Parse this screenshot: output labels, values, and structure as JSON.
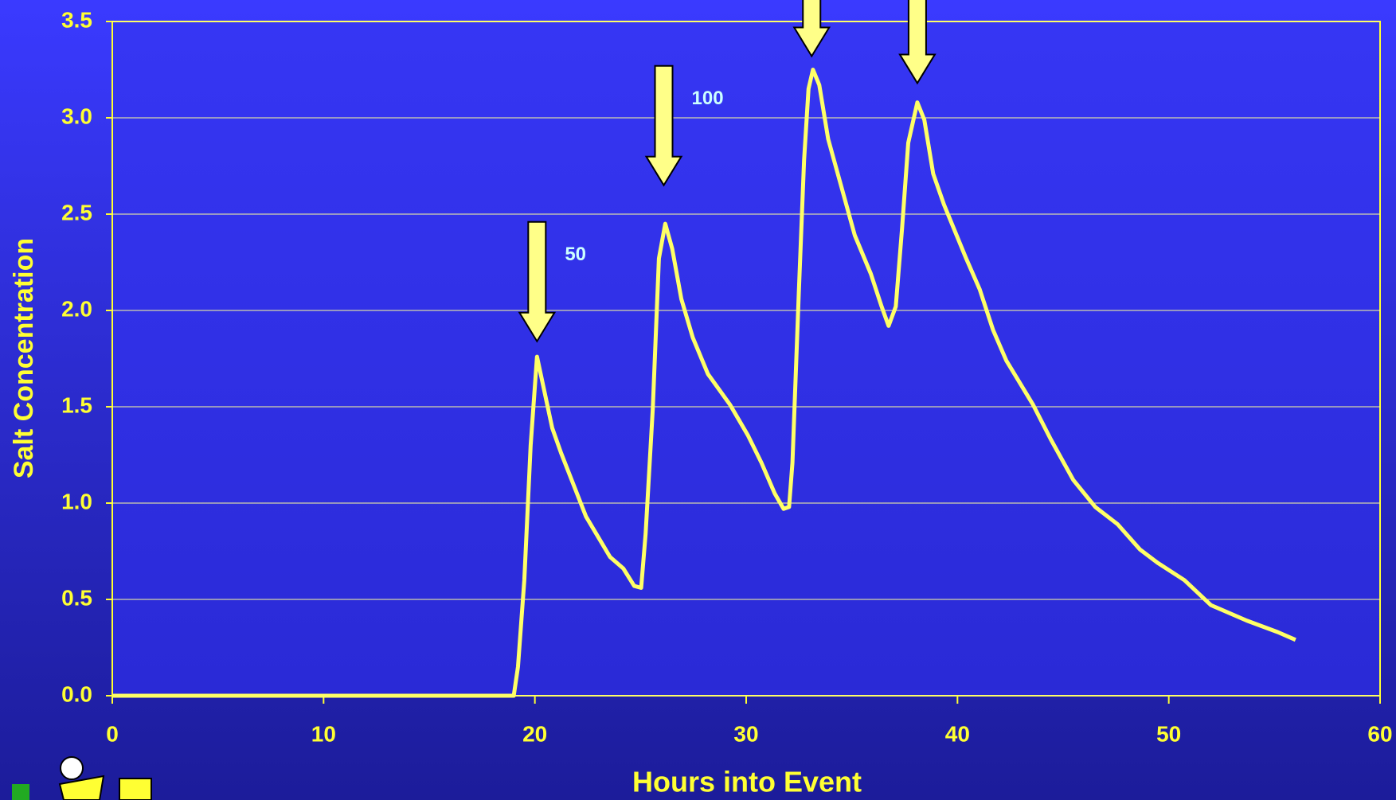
{
  "chart_data": {
    "type": "line",
    "x_label": "Hours into Event",
    "y_label": "Salt Concentration",
    "series": [
      {
        "color": "#ffff66",
        "x": [
          0,
          18.2,
          19.0,
          19.2,
          19.5,
          19.8,
          20.1,
          20.82,
          21.24,
          22.42,
          23.56,
          24.19,
          24.7,
          25.03,
          25.24,
          25.58,
          25.87,
          26.17,
          26.5,
          26.93,
          27.47,
          28.19,
          29.24,
          30.09,
          30.72,
          31.35,
          31.77,
          32.03,
          32.19,
          32.49,
          32.74,
          32.95,
          33.16,
          33.46,
          33.88,
          34.51,
          35.14,
          35.9,
          36.41,
          36.74,
          37.08,
          37.38,
          37.67,
          38.1,
          38.43,
          38.85,
          39.36,
          40.41,
          41.05,
          41.68,
          42.31,
          43.58,
          44.42,
          45.48,
          46.52,
          47.58,
          48.63,
          49.47,
          50.74,
          52.0,
          53.69,
          55.16,
          56.0
        ],
        "values": [
          0,
          0,
          0,
          0.15,
          0.6,
          1.3,
          1.76,
          1.39,
          1.26,
          0.93,
          0.72,
          0.66,
          0.57,
          0.56,
          0.84,
          1.49,
          2.27,
          2.45,
          2.32,
          2.06,
          1.86,
          1.67,
          1.51,
          1.35,
          1.21,
          1.05,
          0.97,
          0.98,
          1.21,
          2.09,
          2.78,
          3.15,
          3.25,
          3.17,
          2.89,
          2.64,
          2.39,
          2.19,
          2.02,
          1.92,
          2.02,
          2.43,
          2.87,
          3.08,
          2.99,
          2.71,
          2.55,
          2.27,
          2.11,
          1.9,
          1.74,
          1.51,
          1.33,
          1.12,
          0.98,
          0.89,
          0.76,
          0.69,
          0.6,
          0.47,
          0.39,
          0.33,
          0.29
        ]
      }
    ],
    "annotations": [
      {
        "text": "50",
        "x": 20.1,
        "y": 1.84
      },
      {
        "text": "100",
        "x": 26.1,
        "y": 2.65
      },
      {
        "x": 33.1,
        "y": 3.32
      },
      {
        "x": 38.1,
        "y": 3.18
      }
    ],
    "xlim": [
      0,
      60
    ],
    "xticks": [
      0,
      10,
      20,
      30,
      40,
      50,
      60
    ],
    "ylim": [
      0,
      3.5
    ],
    "yticks": [
      {
        "value": 0,
        "label": "0.0"
      },
      {
        "value": 0.5,
        "label": "0.5"
      },
      {
        "value": 1,
        "label": "1.0"
      },
      {
        "value": 1.5,
        "label": "1.5"
      },
      {
        "value": 2,
        "label": "2.0"
      },
      {
        "value": 2.5,
        "label": "2.5"
      },
      {
        "value": 3,
        "label": "3.0"
      },
      {
        "value": 3.5,
        "label": "3.5"
      }
    ],
    "grid": true
  }
}
